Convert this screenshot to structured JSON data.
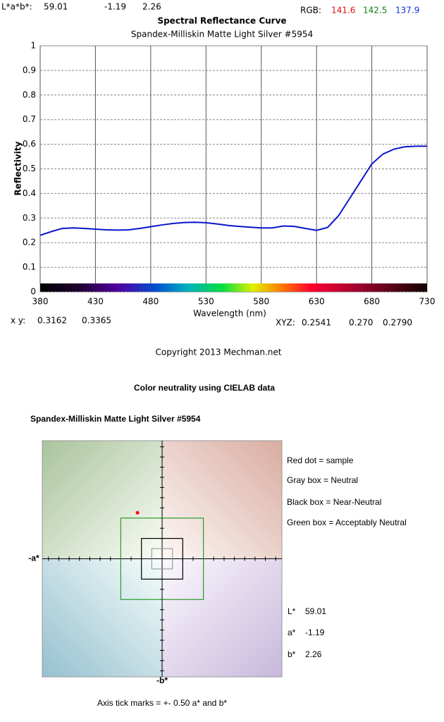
{
  "header": {
    "lab_label": "L*a*b*:",
    "lab": [
      "59.01",
      "-1.19",
      "2.26"
    ],
    "rgb_label": "RGB:",
    "rgb": [
      {
        "text": "141.6",
        "color": "#e01010"
      },
      {
        "text": "142.5",
        "color": "#108010"
      },
      {
        "text": "137.9",
        "color": "#1030e0"
      }
    ]
  },
  "chromaticity": {
    "xy_label": "x y:",
    "xy": [
      "0.3162",
      "0.3365"
    ],
    "xyz_label": "XYZ:",
    "xyz": [
      "0.2541",
      "0.270",
      "0.2790"
    ]
  },
  "copyright": "Copyright 2013 Mechman.net",
  "chart_data": [
    {
      "type": "line",
      "title": "Spectral Reflectance Curve",
      "subtitle": "Spandex-Milliskin Matte Light Silver #5954",
      "xlabel": "Wavelength (nm)",
      "ylabel": "Reflectivity",
      "color": "#0a14d0",
      "grid": true,
      "x": [
        380,
        390,
        400,
        410,
        420,
        430,
        440,
        450,
        460,
        470,
        480,
        490,
        500,
        510,
        520,
        530,
        540,
        550,
        560,
        570,
        580,
        590,
        600,
        610,
        620,
        630,
        640,
        650,
        660,
        670,
        680,
        690,
        700,
        710,
        720,
        730
      ],
      "values": [
        0.23,
        0.245,
        0.258,
        0.26,
        0.258,
        0.255,
        0.252,
        0.251,
        0.252,
        0.258,
        0.265,
        0.272,
        0.278,
        0.282,
        0.283,
        0.281,
        0.276,
        0.27,
        0.266,
        0.263,
        0.26,
        0.26,
        0.268,
        0.266,
        0.258,
        0.25,
        0.262,
        0.31,
        0.38,
        0.45,
        0.52,
        0.56,
        0.58,
        0.59,
        0.592,
        0.592
      ],
      "xlim": [
        380,
        730
      ],
      "xticks": [
        380,
        430,
        480,
        530,
        580,
        630,
        680,
        730
      ],
      "ylim": [
        0,
        1
      ],
      "yticks": [
        0,
        0.1,
        0.2,
        0.3,
        0.4,
        0.5,
        0.6,
        0.7,
        0.8,
        0.9,
        1
      ]
    },
    {
      "type": "scatter",
      "title": "Color neutrality using CIELAB data",
      "subtitle": "Spandex-Milliskin Matte Light Silver #5954",
      "xlabel": "-a*",
      "ylabel": "-b*",
      "xlim": [
        -5.8,
        5.8
      ],
      "ylim": [
        -5.8,
        5.8
      ],
      "xticks": [
        -5.5,
        -5,
        -4.5,
        -4,
        -3.5,
        -3,
        -2.5,
        -2,
        -1.5,
        -1,
        -0.5,
        0.5,
        1,
        1.5,
        2,
        2.5,
        3,
        3.5,
        4,
        4.5,
        5,
        5.5
      ],
      "yticks": [
        -5.5,
        -5,
        -4.5,
        -4,
        -3.5,
        -3,
        -2.5,
        -2,
        -1.5,
        -1,
        -0.5,
        0.5,
        1,
        1.5,
        2,
        2.5,
        3,
        3.5,
        4,
        4.5,
        5,
        5.5
      ],
      "series": [
        {
          "name": "Red dot = sample",
          "color": "#ff0000",
          "x": [
            -1.19
          ],
          "y": [
            2.26
          ]
        }
      ],
      "regions": [
        {
          "name": "Gray box = Neutral",
          "color": "#a0a0a0",
          "half_width": 0.5
        },
        {
          "name": "Black box = Near-Neutral",
          "color": "#000000",
          "half_width": 1
        },
        {
          "name": "Green box = Acceptably Neutral",
          "color": "#2a9a2a",
          "half_width": 2
        }
      ],
      "stats": [
        {
          "label": "L*",
          "value": "59.01"
        },
        {
          "label": "a*",
          "value": "-1.19"
        },
        {
          "label": "b*",
          "value": "2.26"
        }
      ],
      "note": "Axis tick marks = +- 0.50 a* and b*"
    }
  ]
}
